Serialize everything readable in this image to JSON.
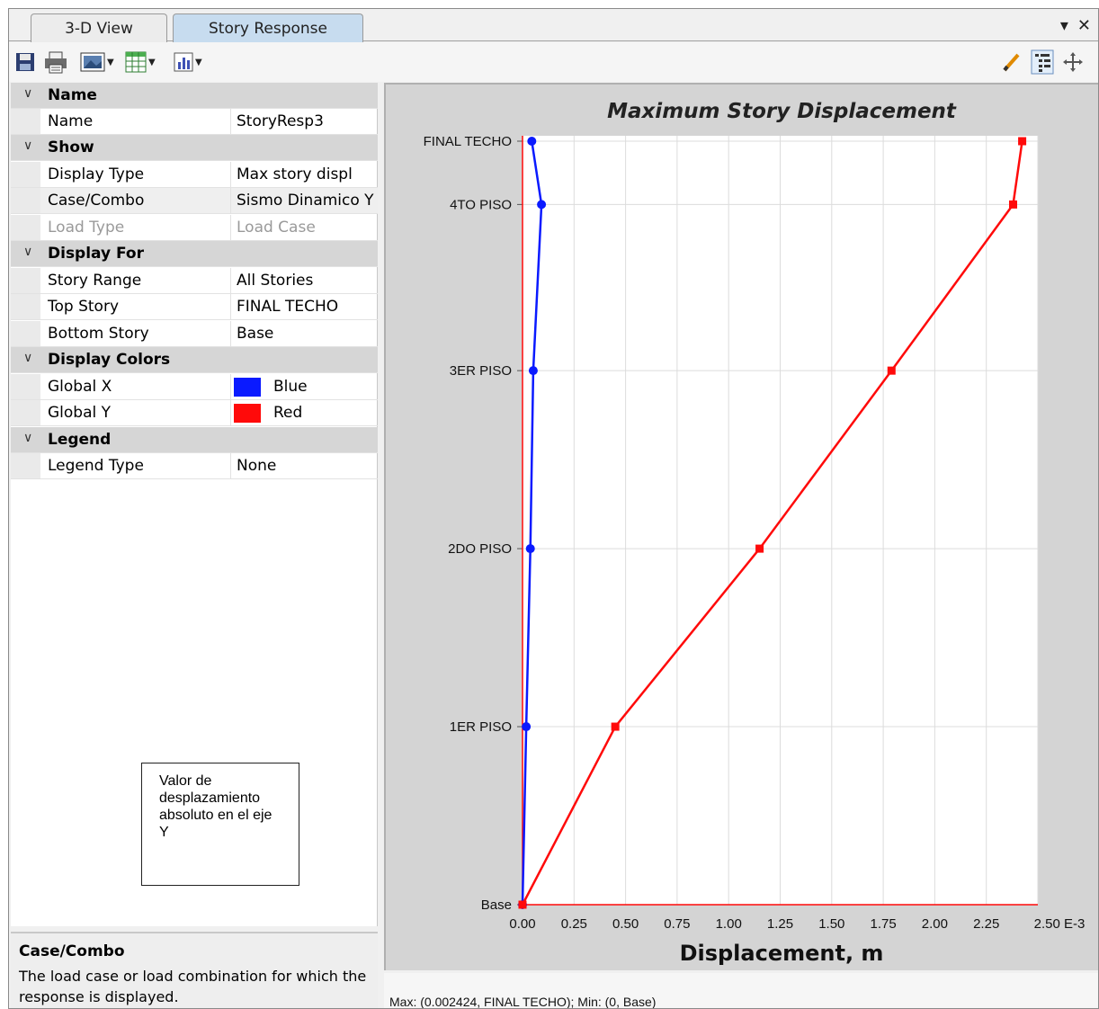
{
  "tabs": [
    {
      "label": "3-D View"
    },
    {
      "label": "Story Response"
    }
  ],
  "window_controls": {
    "dropdown": "▾",
    "close": "✕"
  },
  "properties": {
    "groups": {
      "name": "Name",
      "show": "Show",
      "display_for": "Display For",
      "display_colors": "Display Colors",
      "legend": "Legend"
    },
    "name": {
      "label": "Name",
      "value": "StoryResp3"
    },
    "display_type": {
      "label": "Display Type",
      "value": "Max story displ"
    },
    "case_combo": {
      "label": "Case/Combo",
      "value": "Sismo Dinamico Y"
    },
    "load_type": {
      "label": "Load Type",
      "value": "Load Case"
    },
    "story_range": {
      "label": "Story Range",
      "value": "All Stories"
    },
    "top_story": {
      "label": "Top Story",
      "value": "FINAL TECHO"
    },
    "bottom_story": {
      "label": "Bottom Story",
      "value": "Base"
    },
    "global_x": {
      "label": "Global X",
      "value": "Blue",
      "color": "#0a1aff"
    },
    "global_y": {
      "label": "Global Y",
      "value": "Red",
      "color": "#ff0a0a"
    },
    "legend_type": {
      "label": "Legend Type",
      "value": "None"
    }
  },
  "annotation": {
    "text": "Valor de desplazamiento absoluto en el eje Y"
  },
  "help": {
    "title": "Case/Combo",
    "text": "The load case or load combination for which the response is displayed."
  },
  "status": {
    "text": "Max: (0.002424, FINAL TECHO);   Min: (0, Base)"
  },
  "chart_data": {
    "type": "line",
    "title": "Maximum Story Displacement",
    "xlabel": "Displacement, m",
    "x_ticks": [
      "0.00",
      "0.25",
      "0.50",
      "0.75",
      "1.00",
      "1.25",
      "1.50",
      "1.75",
      "2.00",
      "2.25",
      "2.50 E-3"
    ],
    "xlim": [
      0,
      0.0025
    ],
    "stories": [
      "Base",
      "1ER PISO",
      "2DO PISO",
      "3ER PISO",
      "4TO PISO",
      "FINAL TECHO"
    ],
    "story_heights": [
      0,
      4.5,
      9.0,
      13.5,
      17.7,
      19.3
    ],
    "grid": true,
    "series": [
      {
        "name": "Global X",
        "color": "#0a1aff",
        "marker": "circle",
        "values": [
          0.0,
          1.8e-05,
          3.8e-05,
          5.2e-05,
          9.2e-05,
          4.5e-05
        ]
      },
      {
        "name": "Global Y",
        "color": "#ff0a0a",
        "marker": "square",
        "values": [
          0.0,
          0.00045,
          0.00115,
          0.00179,
          0.00238,
          0.002424
        ]
      }
    ]
  }
}
